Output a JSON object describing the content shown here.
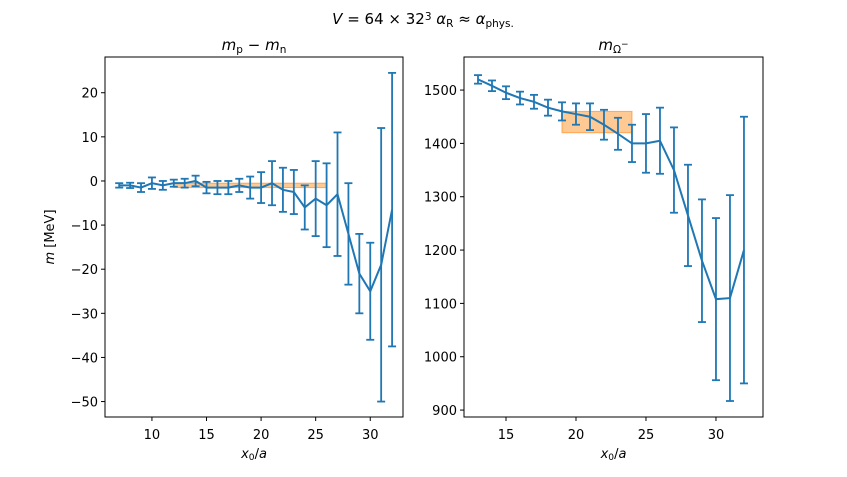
{
  "chart_data": [
    {
      "type": "errorbar",
      "title": [
        {
          "text": "m",
          "style": "i"
        },
        {
          "text": "p",
          "style": "sub"
        },
        {
          "text": " − "
        },
        {
          "text": "m",
          "style": "i"
        },
        {
          "text": "n",
          "style": "sub"
        }
      ],
      "suptitle": [
        {
          "text": "V",
          "style": "i"
        },
        {
          "text": " = 64 × 32"
        },
        {
          "text": "3",
          "style": "sup"
        },
        {
          "text": "      α",
          "style": "i"
        },
        {
          "text": "R",
          "style": "sub"
        },
        {
          "text": " ≈ "
        },
        {
          "text": "α",
          "style": "i"
        },
        {
          "text": "phys.",
          "style": "sub"
        }
      ],
      "xlabel": [
        {
          "text": "x",
          "style": "i"
        },
        {
          "text": "0",
          "style": "sub"
        },
        {
          "text": "/"
        },
        {
          "text": "a",
          "style": "i"
        }
      ],
      "ylabel": [
        {
          "text": "m",
          "style": "i"
        },
        {
          "text": " [MeV]"
        }
      ],
      "color": "#1f77b4",
      "x": [
        7,
        8,
        9,
        10,
        11,
        12,
        13,
        14,
        15,
        16,
        17,
        18,
        19,
        20,
        21,
        22,
        23,
        24,
        25,
        26,
        27,
        28,
        29,
        30,
        31,
        32
      ],
      "values": [
        -1,
        -1,
        -1.5,
        -0.5,
        -1,
        -0.5,
        -0.5,
        0,
        -1.5,
        -1.5,
        -1.5,
        -1,
        -1.5,
        -1.5,
        -0.5,
        -2,
        -2.5,
        -6,
        -4,
        -5.5,
        -3,
        -12,
        -21,
        -25,
        -19,
        -6.5
      ],
      "errors": [
        0.5,
        0.6,
        1,
        1.3,
        1,
        0.8,
        1,
        1.2,
        1.3,
        1.5,
        1.5,
        1.5,
        2.5,
        3.5,
        5,
        5,
        5,
        5,
        8.5,
        9.5,
        14,
        11.5,
        9,
        11,
        31,
        31
      ],
      "band": {
        "x": [
          12,
          26
        ],
        "y": [
          -1.5,
          -0.5
        ],
        "color": "#ffbb78"
      },
      "xlim": [
        5.7,
        33.0
      ],
      "ylim": [
        -53.5,
        28.1
      ],
      "xticks": [
        10,
        15,
        20,
        25,
        30
      ],
      "yticks": [
        {
          "value": -50,
          "label": "−50"
        },
        {
          "value": -40,
          "label": "−40"
        },
        {
          "value": -30,
          "label": "−30"
        },
        {
          "value": -20,
          "label": "−20"
        },
        {
          "value": -10,
          "label": "−10"
        },
        0,
        10,
        20
      ]
    },
    {
      "type": "errorbar",
      "title": [
        {
          "text": "m",
          "style": "i"
        },
        {
          "text": "Ω",
          "style": "sub"
        },
        {
          "text": "−",
          "style": "subsup"
        }
      ],
      "xlabel": [
        {
          "text": "x",
          "style": "i"
        },
        {
          "text": "0",
          "style": "sub"
        },
        {
          "text": "/"
        },
        {
          "text": "a",
          "style": "i"
        }
      ],
      "color": "#1f77b4",
      "x": [
        13,
        14,
        15,
        16,
        17,
        18,
        19,
        20,
        21,
        22,
        23,
        24,
        25,
        26,
        27,
        28,
        29,
        30,
        31,
        32
      ],
      "values": [
        1520,
        1508,
        1495,
        1485,
        1478,
        1467,
        1460,
        1455,
        1450,
        1435,
        1418,
        1400,
        1400,
        1405,
        1350,
        1265,
        1180,
        1108,
        1110,
        1200
      ],
      "errors": [
        8,
        10,
        12,
        12,
        13,
        15,
        17,
        20,
        25,
        28,
        30,
        35,
        55,
        62,
        80,
        95,
        115,
        152,
        193,
        250
      ],
      "band": {
        "x": [
          19,
          24
        ],
        "y": [
          1420,
          1460
        ],
        "color": "#ffbb78"
      },
      "xlim": [
        12.0,
        33.36
      ],
      "ylim": [
        887,
        1562
      ],
      "xticks": [
        15,
        20,
        25,
        30
      ],
      "yticks": [
        900,
        1000,
        1100,
        1200,
        1300,
        1400,
        1500
      ]
    }
  ]
}
